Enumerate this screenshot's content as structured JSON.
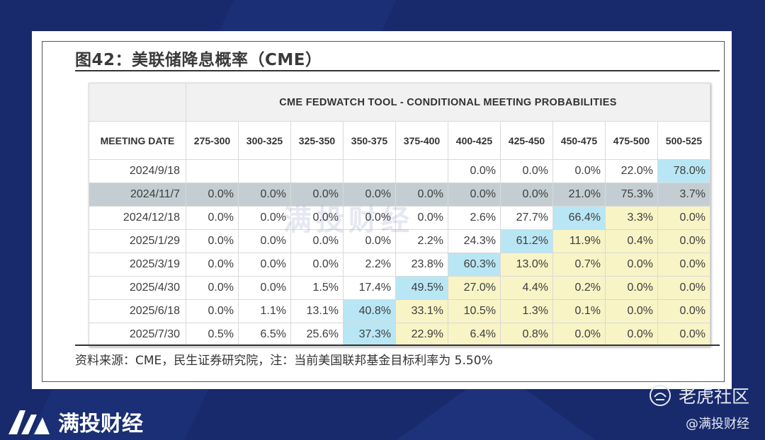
{
  "figure_title": "图42：美联储降息概率（CME）",
  "source_note": "资料来源：CME，民生证券研究院，注：当前美国联邦基金目标利率为 5.50%",
  "watermark_text": "满投财经",
  "brand": {
    "name": "满投财经",
    "logo_icon": "brand-m-logo-icon"
  },
  "community": {
    "name": "老虎社区",
    "icon": "tiger-logo-icon",
    "handle": "@满投财经"
  },
  "colors": {
    "background": "#182a6c",
    "blue_cell": "#b9e6f4",
    "yellow_cell": "#f8f4c6",
    "grey_row": "#c4ced2"
  },
  "chart_data": {
    "type": "table",
    "title": "CME FEDWATCH TOOL - CONDITIONAL MEETING PROBABILITIES",
    "row_header": "MEETING DATE",
    "columns": [
      "275-300",
      "300-325",
      "325-350",
      "350-375",
      "375-400",
      "400-425",
      "425-450",
      "450-475",
      "475-500",
      "500-525"
    ],
    "rows": [
      {
        "date": "2024/9/18",
        "values": [
          "",
          "",
          "",
          "",
          "",
          "0.0%",
          "0.0%",
          "0.0%",
          "22.0%",
          "78.0%"
        ],
        "colors": [
          "w",
          "w",
          "w",
          "w",
          "w",
          "w",
          "w",
          "w",
          "w",
          "b"
        ]
      },
      {
        "date": "2024/11/7",
        "highlight": true,
        "values": [
          "0.0%",
          "0.0%",
          "0.0%",
          "0.0%",
          "0.0%",
          "0.0%",
          "0.0%",
          "21.0%",
          "75.3%",
          "3.7%"
        ],
        "colors": [
          "w",
          "w",
          "w",
          "w",
          "w",
          "w",
          "w",
          "w",
          "w",
          "w"
        ]
      },
      {
        "date": "2024/12/18",
        "values": [
          "0.0%",
          "0.0%",
          "0.0%",
          "0.0%",
          "0.0%",
          "2.6%",
          "27.7%",
          "66.4%",
          "3.3%",
          "0.0%"
        ],
        "colors": [
          "w",
          "w",
          "w",
          "w",
          "w",
          "w",
          "w",
          "b",
          "y",
          "y"
        ]
      },
      {
        "date": "2025/1/29",
        "values": [
          "0.0%",
          "0.0%",
          "0.0%",
          "0.0%",
          "2.2%",
          "24.3%",
          "61.2%",
          "11.9%",
          "0.4%",
          "0.0%"
        ],
        "colors": [
          "w",
          "w",
          "w",
          "w",
          "w",
          "w",
          "b",
          "y",
          "y",
          "y"
        ]
      },
      {
        "date": "2025/3/19",
        "values": [
          "0.0%",
          "0.0%",
          "0.0%",
          "2.2%",
          "23.8%",
          "60.3%",
          "13.0%",
          "0.7%",
          "0.0%",
          "0.0%"
        ],
        "colors": [
          "w",
          "w",
          "w",
          "w",
          "w",
          "b",
          "y",
          "y",
          "y",
          "y"
        ]
      },
      {
        "date": "2025/4/30",
        "values": [
          "0.0%",
          "0.0%",
          "1.5%",
          "17.4%",
          "49.5%",
          "27.0%",
          "4.4%",
          "0.2%",
          "0.0%",
          "0.0%"
        ],
        "colors": [
          "w",
          "w",
          "w",
          "w",
          "b",
          "y",
          "y",
          "y",
          "y",
          "y"
        ]
      },
      {
        "date": "2025/6/18",
        "values": [
          "0.0%",
          "1.1%",
          "13.1%",
          "40.8%",
          "33.1%",
          "10.5%",
          "1.3%",
          "0.1%",
          "0.0%",
          "0.0%"
        ],
        "colors": [
          "w",
          "w",
          "w",
          "b",
          "y",
          "y",
          "y",
          "y",
          "y",
          "y"
        ]
      },
      {
        "date": "2025/7/30",
        "values": [
          "0.5%",
          "6.5%",
          "25.6%",
          "37.3%",
          "22.9%",
          "6.4%",
          "0.8%",
          "0.0%",
          "0.0%",
          "0.0%"
        ],
        "colors": [
          "w",
          "w",
          "w",
          "b",
          "y",
          "y",
          "y",
          "y",
          "y",
          "y"
        ]
      }
    ]
  }
}
